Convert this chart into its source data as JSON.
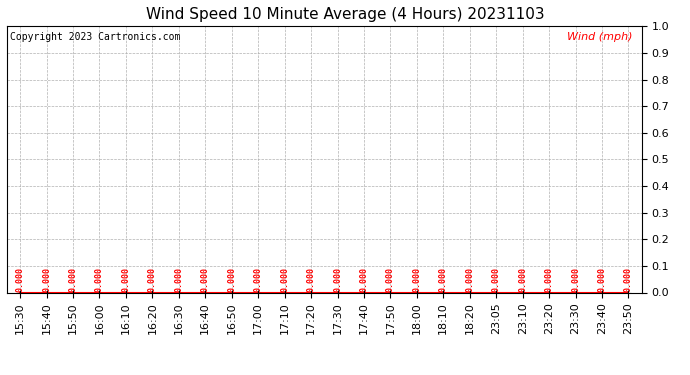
{
  "title": "Wind Speed 10 Minute Average (4 Hours) 20231103",
  "copyright": "Copyright 2023 Cartronics.com",
  "legend_label": "Wind (mph)",
  "background_color": "#ffffff",
  "line_color": "#ff0000",
  "grid_color": "#b0b0b0",
  "text_color_black": "#000000",
  "text_color_red": "#ff0000",
  "ylim": [
    0.0,
    1.0
  ],
  "yticks": [
    0.0,
    0.1,
    0.2,
    0.3,
    0.4,
    0.5,
    0.6,
    0.7,
    0.8,
    0.9,
    1.0
  ],
  "x_labels": [
    "15:30",
    "15:40",
    "15:50",
    "16:00",
    "16:10",
    "16:20",
    "16:30",
    "16:40",
    "16:50",
    "17:00",
    "17:10",
    "17:20",
    "17:30",
    "17:40",
    "17:50",
    "18:00",
    "18:10",
    "18:20",
    "23:05",
    "23:10",
    "23:20",
    "23:30",
    "23:40",
    "23:50"
  ],
  "wind_values": [
    0.0,
    0.0,
    0.0,
    0.0,
    0.0,
    0.0,
    0.0,
    0.0,
    0.0,
    0.0,
    0.0,
    0.0,
    0.0,
    0.0,
    0.0,
    0.0,
    0.0,
    0.0,
    0.0,
    0.0,
    0.0,
    0.0,
    0.0,
    0.0
  ],
  "title_fontsize": 11,
  "axis_fontsize": 8,
  "annotation_fontsize": 6,
  "copyright_fontsize": 7,
  "legend_fontsize": 8
}
